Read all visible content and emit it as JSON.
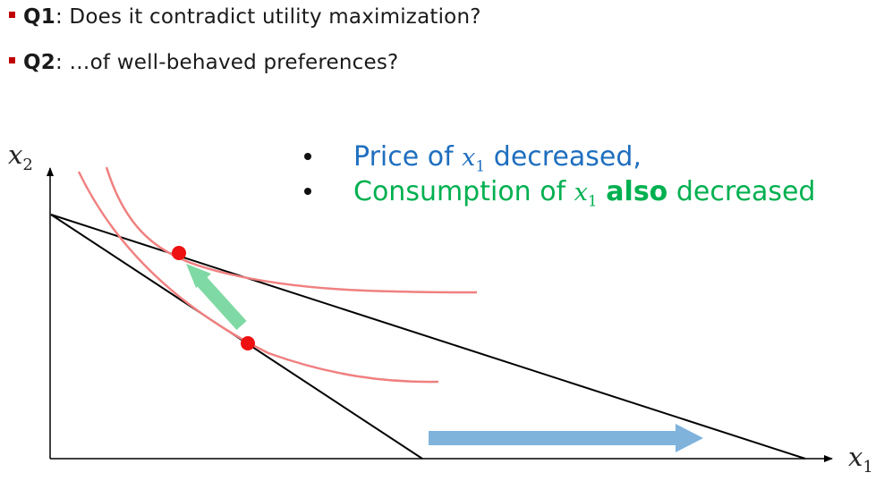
{
  "questions": [
    {
      "label": "Q1",
      "text": ": Does it contradict utility maximization?"
    },
    {
      "label": "Q2",
      "text": ": …of well-behaved preferences?"
    }
  ],
  "observations": {
    "line1": {
      "prefix": "Price of ",
      "var": "x",
      "sub": "1",
      "suffix": " decreased,"
    },
    "line2": {
      "prefix": "Consumption of ",
      "var": "x",
      "sub": "1",
      "bold": "also",
      "suffix": " decreased"
    }
  },
  "axes": {
    "y": {
      "var": "x",
      "sub": "2"
    },
    "x": {
      "var": "x",
      "sub": "1"
    }
  },
  "colors": {
    "bullet_red": "#c00000",
    "price_blue": "#1f6fbf",
    "consumption_green": "#00b050",
    "indifference_curve": "#f08080",
    "optimum_point": "#ee1111",
    "shift_arrow_green": "#7fd9a4",
    "shift_arrow_blue": "#7fb3dc",
    "budget_line": "#000000"
  }
}
